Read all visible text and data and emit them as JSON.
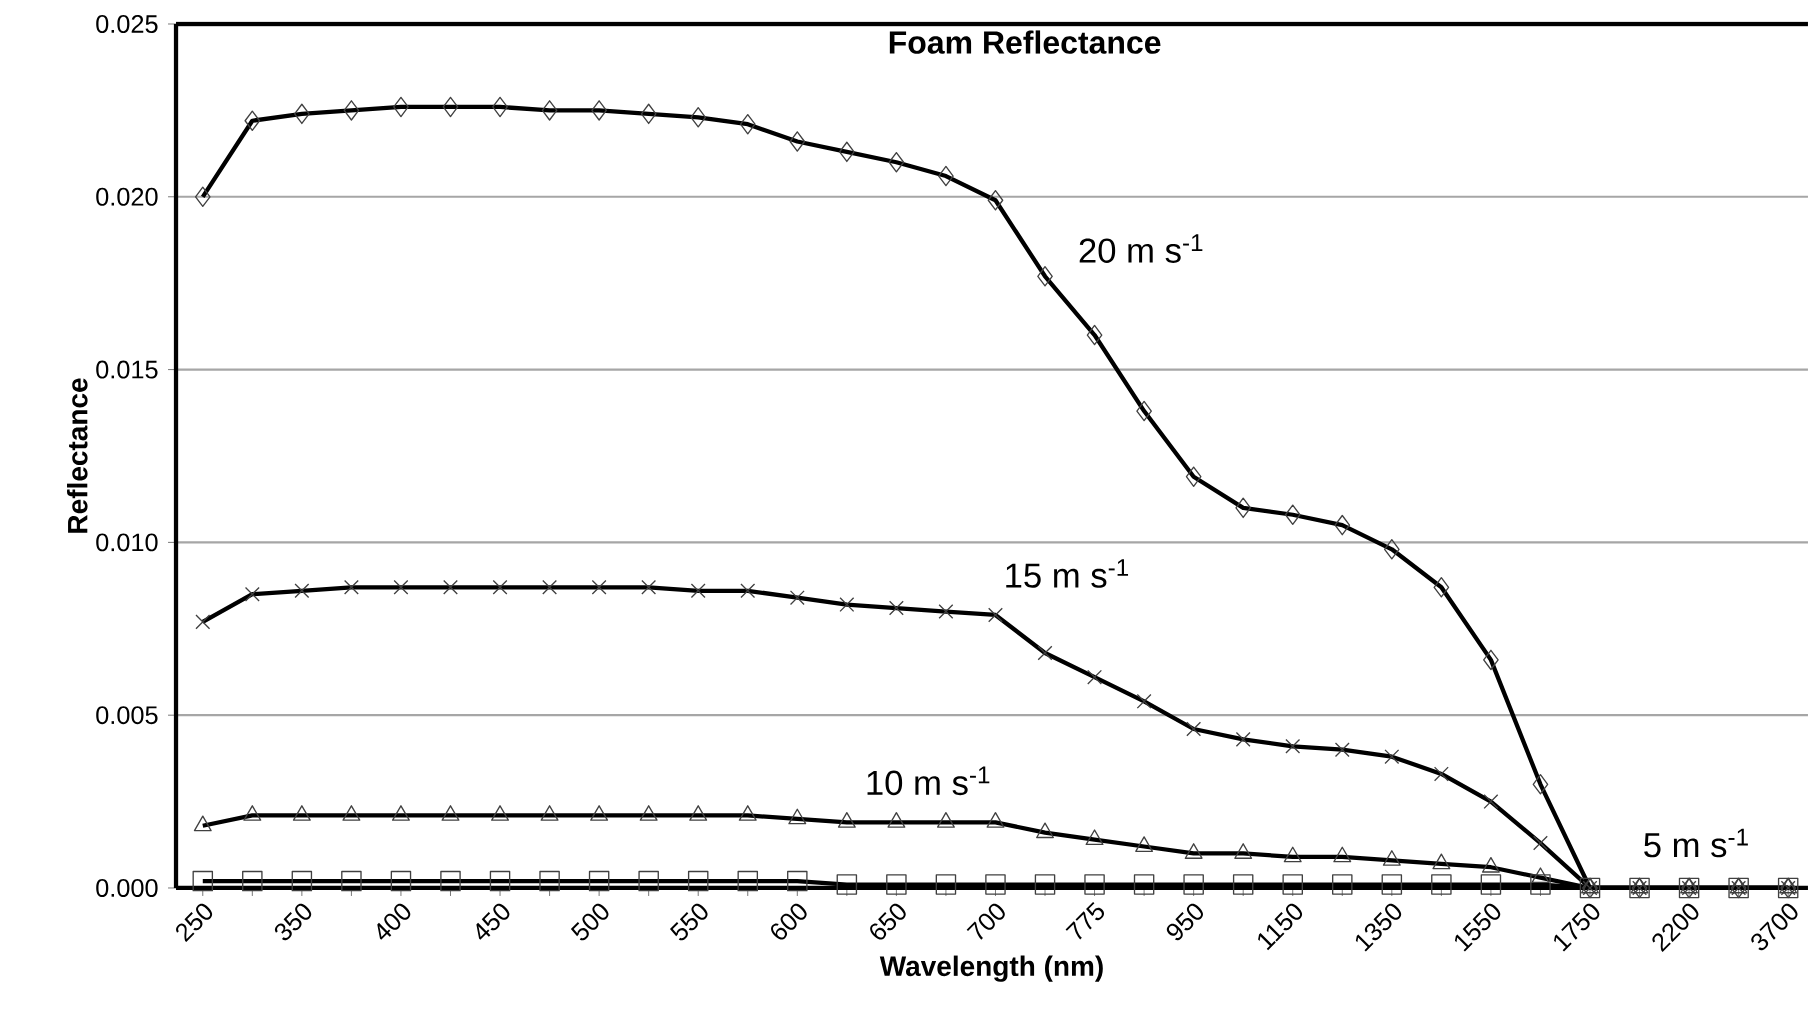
{
  "chart_data": {
    "type": "line",
    "title": "**Foam Reflectance**",
    "xlabel": "Wavelength (nm)",
    "ylabel": "Reflectance",
    "categories": [
      "250",
      null,
      "350",
      null,
      "400",
      null,
      "450",
      null,
      "500",
      null,
      "550",
      null,
      "600",
      null,
      "650",
      null,
      "700",
      null,
      "775",
      null,
      "950",
      null,
      "1150",
      null,
      "1350",
      null,
      "1550",
      null,
      "1750",
      null,
      "2200",
      null,
      "3700"
    ],
    "series": [
      {
        "name": "20 m s$^{-1}$",
        "color": "#000000",
        "marker": "diamond",
        "values": [
          0.02,
          0.0222,
          0.0224,
          0.0225,
          0.0226,
          0.0226,
          0.0226,
          0.0225,
          0.0225,
          0.0224,
          0.0223,
          0.0221,
          0.0216,
          0.0213,
          0.021,
          0.0206,
          0.0199,
          0.0177,
          0.016,
          0.0138,
          0.0119,
          0.011,
          0.0108,
          0.0105,
          0.0098,
          0.0087,
          0.0066,
          0.003,
          0.0,
          0.0,
          0.0,
          0.0,
          0.0
        ]
      },
      {
        "name": "15 m s$^{-1}$",
        "color": "#000000",
        "marker": "cross",
        "values": [
          0.0077,
          0.0085,
          0.0086,
          0.0087,
          0.0087,
          0.0087,
          0.0087,
          0.0087,
          0.0087,
          0.0087,
          0.0086,
          0.0086,
          0.0084,
          0.0082,
          0.0081,
          0.008,
          0.0079,
          0.0068,
          0.0061,
          0.0054,
          0.0046,
          0.0043,
          0.0041,
          0.004,
          0.0038,
          0.0033,
          0.0025,
          0.0013,
          0.0,
          0.0,
          0.0,
          0.0,
          0.0
        ]
      },
      {
        "name": "10 m s$^{-1}$",
        "color": "#000000",
        "marker": "triangle",
        "values": [
          0.0018,
          0.0021,
          0.0021,
          0.0021,
          0.0021,
          0.0021,
          0.0021,
          0.0021,
          0.0021,
          0.0021,
          0.0021,
          0.0021,
          0.002,
          0.0019,
          0.0019,
          0.0019,
          0.0019,
          0.0016,
          0.0014,
          0.0012,
          0.001,
          0.001,
          0.0009,
          0.0009,
          0.0008,
          0.0007,
          0.0006,
          0.0003,
          0.0,
          0.0,
          0.0,
          0.0,
          0.0
        ]
      },
      {
        "name": "5 m s$^{-1}$",
        "color": "#000000",
        "marker": "square",
        "values": [
          0.0002,
          0.0002,
          0.0002,
          0.0002,
          0.0002,
          0.0002,
          0.0002,
          0.0002,
          0.0002,
          0.0002,
          0.0002,
          0.0002,
          0.0002,
          0.0001,
          0.0001,
          0.0001,
          0.0001,
          0.0001,
          0.0001,
          0.0001,
          0.0001,
          0.0001,
          0.0001,
          0.0001,
          0.0001,
          0.0001,
          0.0001,
          0.0001,
          0.0,
          0.0,
          0.0,
          0.0,
          0.0
        ]
      }
    ],
    "ylim": [
      0,
      0.025
    ],
    "yticks": [
      {
        "value": 0,
        "label": "0.000"
      },
      {
        "value": 0.005,
        "label": "0.005"
      },
      {
        "value": 0.01,
        "label": "0.010"
      },
      {
        "value": 0.015,
        "label": "0.015"
      },
      {
        "value": 0.02,
        "label": "0.020"
      },
      {
        "value": 0.025,
        "label": "0.025"
      }
    ],
    "grid": "y"
  }
}
